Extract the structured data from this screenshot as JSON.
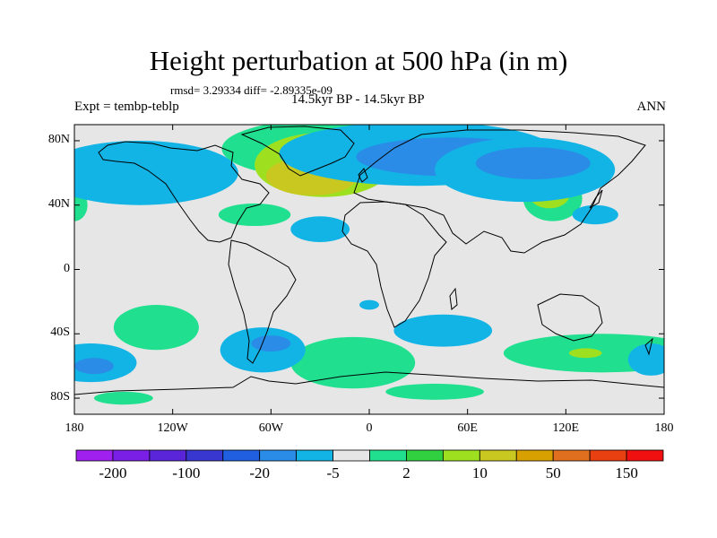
{
  "title": "Height perturbation at 500 hPa (in m)",
  "stats": "rmsd= 3.29334  diff= -2.89335e-09",
  "experiment": "Expt = tembp-teblp",
  "period": "14.5kyr BP - 14.5kyr BP",
  "season": "ANN",
  "map": {
    "lon_range": [
      -180,
      180
    ],
    "lat_range": [
      -90,
      90
    ],
    "x_tick_labels": [
      "180",
      "120W",
      "60W",
      "0",
      "60E",
      "120E",
      "180"
    ],
    "y_tick_labels": [
      "80N",
      "40N",
      "0",
      "40S",
      "80S"
    ],
    "y_tick_values": [
      80,
      40,
      0,
      -40,
      -80
    ],
    "background_color": "#e6e6e6",
    "fields": [
      {
        "level": 5,
        "lon": -30,
        "lat": 75,
        "rx": 60,
        "ry": 18,
        "region": "north-atlantic-greenland"
      },
      {
        "level": 6,
        "lon": -28,
        "lat": 65,
        "rx": 42,
        "ry": 20,
        "region": "greenland-core"
      },
      {
        "level": 7,
        "lon": -35,
        "lat": 58,
        "rx": 28,
        "ry": 12,
        "region": "greenland-core"
      },
      {
        "level": 5,
        "lon": 112,
        "lat": 44,
        "rx": 18,
        "ry": 14,
        "region": "east-asia"
      },
      {
        "level": 6,
        "lon": 110,
        "lat": 46,
        "rx": 12,
        "ry": 8,
        "region": "east-asia"
      },
      {
        "level": 5,
        "lon": -70,
        "lat": 34,
        "rx": 22,
        "ry": 7,
        "region": "north-atlantic-west"
      },
      {
        "level": 5,
        "lon": -180,
        "lat": 40,
        "rx": 8,
        "ry": 10,
        "region": "dateline-north"
      },
      {
        "level": 5,
        "lon": -130,
        "lat": -36,
        "rx": 26,
        "ry": 14,
        "region": "south-pacific"
      },
      {
        "level": 5,
        "lon": -10,
        "lat": -58,
        "rx": 38,
        "ry": 16,
        "region": "south-atlantic"
      },
      {
        "level": 5,
        "lon": 142,
        "lat": -52,
        "rx": 60,
        "ry": 12,
        "region": "southern-ocean-indian"
      },
      {
        "level": 6,
        "lon": 132,
        "lat": -52,
        "rx": 10,
        "ry": 3,
        "region": "southern-ocean-indian"
      },
      {
        "level": 5,
        "lon": -150,
        "lat": -80,
        "rx": 18,
        "ry": 4,
        "region": "antarctic-coast"
      },
      {
        "level": 5,
        "lon": 40,
        "lat": -76,
        "rx": 30,
        "ry": 5,
        "region": "antarctic-coast"
      },
      {
        "level": 3,
        "lon": 30,
        "lat": 72,
        "rx": 85,
        "ry": 20,
        "region": "eurasia-north"
      },
      {
        "level": 2,
        "lon": 50,
        "lat": 70,
        "rx": 58,
        "ry": 12,
        "region": "eurasia-north"
      },
      {
        "level": 3,
        "lon": 95,
        "lat": 62,
        "rx": 55,
        "ry": 20,
        "region": "siberia"
      },
      {
        "level": 2,
        "lon": 100,
        "lat": 66,
        "rx": 35,
        "ry": 10,
        "region": "siberia"
      },
      {
        "level": 3,
        "lon": -140,
        "lat": 60,
        "rx": 60,
        "ry": 20,
        "region": "north-pacific"
      },
      {
        "level": 3,
        "lon": -30,
        "lat": 25,
        "rx": 18,
        "ry": 8,
        "region": "north-atlantic-subtropics"
      },
      {
        "level": 3,
        "lon": 138,
        "lat": 34,
        "rx": 14,
        "ry": 6,
        "region": "japan"
      },
      {
        "level": 3,
        "lon": -170,
        "lat": -58,
        "rx": 28,
        "ry": 12,
        "region": "south-pacific-west"
      },
      {
        "level": 2,
        "lon": -168,
        "lat": -60,
        "rx": 12,
        "ry": 5,
        "region": "south-pacific-west"
      },
      {
        "level": 3,
        "lon": -65,
        "lat": -50,
        "rx": 26,
        "ry": 14,
        "region": "south-america-south"
      },
      {
        "level": 2,
        "lon": -60,
        "lat": -46,
        "rx": 12,
        "ry": 5,
        "region": "south-america-south"
      },
      {
        "level": 3,
        "lon": 45,
        "lat": -38,
        "rx": 30,
        "ry": 10,
        "region": "south-indian"
      },
      {
        "level": 3,
        "lon": 172,
        "lat": -56,
        "rx": 14,
        "ry": 10,
        "region": "tasman"
      },
      {
        "level": 3,
        "lon": 0,
        "lat": -22,
        "rx": 6,
        "ry": 3,
        "region": "south-atlantic-small"
      }
    ]
  },
  "colorbar": {
    "colors": [
      "#a020f0",
      "#7a1fe6",
      "#5a24d8",
      "#3838d0",
      "#1f5fe0",
      "#2a8ce6",
      "#12b4e6",
      "#e6e6e6",
      "#20e090",
      "#30d040",
      "#9ee020",
      "#c8c820",
      "#d8a000",
      "#e07020",
      "#e84010",
      "#f01010"
    ],
    "labels": [
      {
        "text": "-200",
        "boundary": 1
      },
      {
        "text": "-100",
        "boundary": 3
      },
      {
        "text": "-20",
        "boundary": 5
      },
      {
        "text": "-5",
        "boundary": 7
      },
      {
        "text": "2",
        "boundary": 9
      },
      {
        "text": "10",
        "boundary": 11
      },
      {
        "text": "50",
        "boundary": 13
      },
      {
        "text": "150",
        "boundary": 15
      }
    ]
  }
}
